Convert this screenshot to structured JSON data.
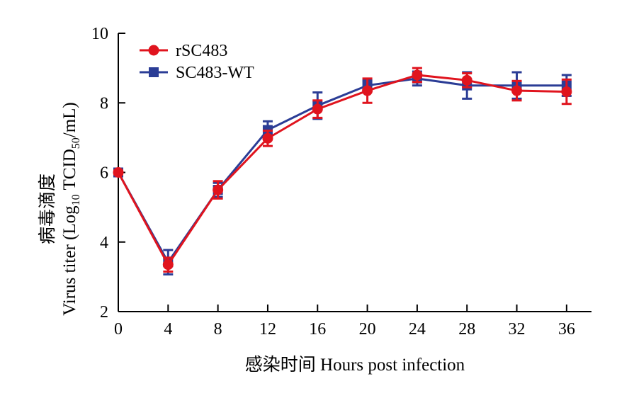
{
  "chart_data": {
    "type": "line",
    "x": [
      0,
      4,
      8,
      12,
      16,
      20,
      24,
      28,
      32,
      36
    ],
    "xlim": [
      0,
      38
    ],
    "ylim": [
      2,
      10
    ],
    "xticks": [
      "0",
      "4",
      "8",
      "12",
      "16",
      "20",
      "24",
      "28",
      "32",
      "36"
    ],
    "yticks": [
      "2",
      "4",
      "6",
      "8",
      "10"
    ],
    "xlabel": "感染时间 Hours post infection",
    "ylabel_line1": "病毒滴度",
    "ylabel_line2": {
      "pre": "Virus titer (Log",
      "sub1": "10",
      "mid": " TCID",
      "sub2": "50",
      "post": "/mL)"
    },
    "grid": false,
    "legend_position": "top-left",
    "series": [
      {
        "name": "rSC483",
        "color": "#e0141e",
        "marker": "circle",
        "values": [
          6.0,
          3.35,
          5.5,
          6.98,
          7.82,
          8.35,
          8.8,
          8.65,
          8.35,
          8.32
        ],
        "errors": [
          0.05,
          0.2,
          0.25,
          0.22,
          0.25,
          0.35,
          0.2,
          0.2,
          0.28,
          0.35
        ]
      },
      {
        "name": "SC483-WT",
        "color": "#2b3d96",
        "marker": "square",
        "values": [
          6.0,
          3.42,
          5.5,
          7.22,
          7.92,
          8.5,
          8.7,
          8.5,
          8.5,
          8.5
        ],
        "errors": [
          0.05,
          0.35,
          0.2,
          0.25,
          0.38,
          0.15,
          0.2,
          0.38,
          0.38,
          0.3
        ]
      }
    ]
  }
}
